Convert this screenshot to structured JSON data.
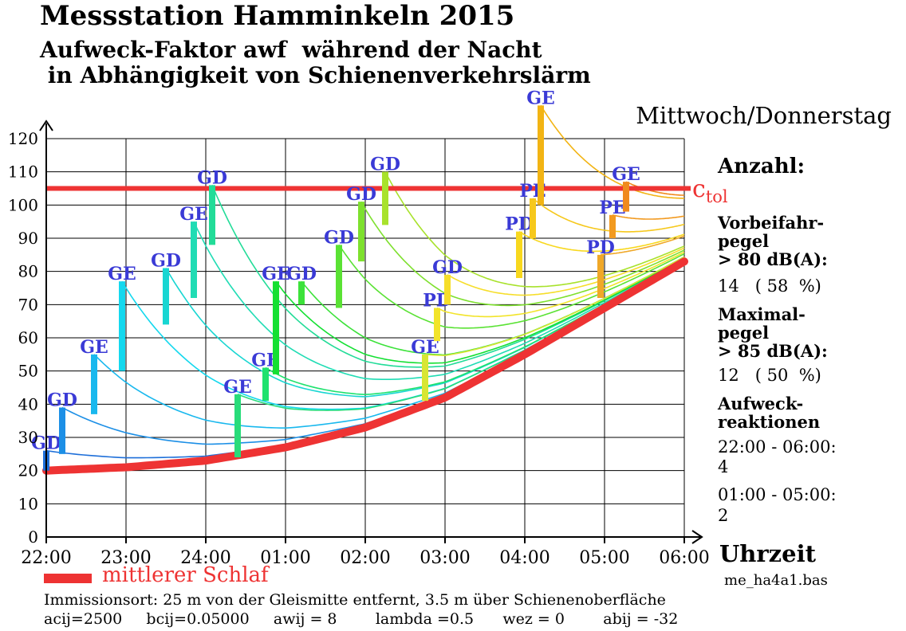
{
  "title": "Messstation Hamminkeln 2015",
  "subtitle_line1": "Aufweck-Faktor awf  während der Nacht",
  "subtitle_line2": " in Abhängigkeit von Schienenverkehrslärm",
  "day_label": "Mittwoch/Donnerstag",
  "side": {
    "count_heading": "Anzahl:",
    "passby_label": "Vorbeifahr-\npegel\n> 80 dB(A):",
    "passby_value": "14   ( 58  %)",
    "max_label": "Maximal-\npegel\n> 85 dB(A):",
    "max_value": "12   ( 50  %)",
    "reactions_label": "Aufweck-\nreaktionen",
    "period1_label": "22:00 - 06:00:",
    "period1_value": "4",
    "period2_label": "01:00 - 05:00:",
    "period2_value": "2"
  },
  "legend_label": "mittlerer Schlaf",
  "ctol_label": "c",
  "ctol_sub": "tol",
  "file_label": "me_ha4a1.bas",
  "footer_line1": "Immissionsort: 25 m von der Gleismitte entfernt, 3.5 m über Schienenoberfläche",
  "footer_line2": "acij=2500     bcij=0.05000     awij = 8        lambda =0.5      wez = 0        abij = -32",
  "x_unit": "Uhrzeit",
  "chart_data": {
    "type": "line",
    "xlabel": "Uhrzeit",
    "ylabel": "",
    "x_range_hours": [
      22,
      30
    ],
    "ylim": [
      0,
      120
    ],
    "yticks": [
      0,
      10,
      20,
      30,
      40,
      50,
      60,
      70,
      80,
      90,
      100,
      110,
      120
    ],
    "xtick_labels": [
      "22:00",
      "23:00",
      "24:00",
      "01:00",
      "02:00",
      "03:00",
      "04:00",
      "05:00",
      "06:00"
    ],
    "grid": true,
    "tolerance_level": 105,
    "baseline_series": {
      "name": "mittlerer Schlaf",
      "color": "#ee3333",
      "x": [
        22,
        23,
        24,
        25,
        26,
        27,
        28,
        29,
        30
      ],
      "y": [
        20,
        21,
        23,
        27,
        33,
        42,
        55,
        69,
        83
      ]
    },
    "events": [
      {
        "time": "22:00",
        "t": 22.0,
        "y_from": 20,
        "y_to": 26,
        "label": "GD",
        "color": "#1e6fd9"
      },
      {
        "time": "22:12",
        "t": 22.2,
        "y_from": 25,
        "y_to": 39,
        "label": "GD",
        "color": "#1c8fe6"
      },
      {
        "time": "22:36",
        "t": 22.6,
        "y_from": 37,
        "y_to": 55,
        "label": "GE",
        "color": "#19b8ee"
      },
      {
        "time": "22:57",
        "t": 22.95,
        "y_from": 50,
        "y_to": 77,
        "label": "GE",
        "color": "#14d8ee"
      },
      {
        "time": "23:30",
        "t": 23.5,
        "y_from": 64,
        "y_to": 81,
        "label": "GD",
        "color": "#18d6d2"
      },
      {
        "time": "23:51",
        "t": 23.85,
        "y_from": 72,
        "y_to": 95,
        "label": "GE",
        "color": "#20dcb4"
      },
      {
        "time": "00:05",
        "t": 24.08,
        "y_from": 88,
        "y_to": 106,
        "label": "GD",
        "color": "#22dc98"
      },
      {
        "time": "00:24",
        "t": 24.4,
        "y_from": 24,
        "y_to": 43,
        "label": "GE",
        "color": "#28dc7a"
      },
      {
        "time": "00:45",
        "t": 24.75,
        "y_from": 41,
        "y_to": 51,
        "label": "GE",
        "color": "#1ee26e"
      },
      {
        "time": "00:53",
        "t": 24.88,
        "y_from": 49,
        "y_to": 77,
        "label": "GE",
        "color": "#14e032"
      },
      {
        "time": "01:12",
        "t": 25.2,
        "y_from": 70,
        "y_to": 77,
        "label": "GD",
        "color": "#3ce23a"
      },
      {
        "time": "01:40",
        "t": 25.67,
        "y_from": 69,
        "y_to": 88,
        "label": "GD",
        "color": "#5ae234"
      },
      {
        "time": "01:57",
        "t": 25.95,
        "y_from": 83,
        "y_to": 101,
        "label": "GD",
        "color": "#7ee02e"
      },
      {
        "time": "02:15",
        "t": 26.25,
        "y_from": 94,
        "y_to": 110,
        "label": "GD",
        "color": "#a8e22c"
      },
      {
        "time": "02:45",
        "t": 26.75,
        "y_from": 41,
        "y_to": 55,
        "label": "GE",
        "color": "#d8e634"
      },
      {
        "time": "02:54",
        "t": 26.9,
        "y_from": 59,
        "y_to": 69,
        "label": "PD",
        "color": "#f2e42a"
      },
      {
        "time": "03:02",
        "t": 27.03,
        "y_from": 70,
        "y_to": 79,
        "label": "GD",
        "color": "#f6de2a"
      },
      {
        "time": "03:56",
        "t": 27.93,
        "y_from": 78,
        "y_to": 92,
        "label": "PD",
        "color": "#f8d81e"
      },
      {
        "time": "04:06",
        "t": 28.1,
        "y_from": 90,
        "y_to": 102,
        "label": "PE",
        "color": "#f6c81c"
      },
      {
        "time": "04:12",
        "t": 28.2,
        "y_from": 100,
        "y_to": 130,
        "label": "GE",
        "color": "#f2b414"
      },
      {
        "time": "04:57",
        "t": 28.95,
        "y_from": 72,
        "y_to": 85,
        "label": "PD",
        "color": "#f0a828"
      },
      {
        "time": "05:06",
        "t": 29.1,
        "y_from": 90,
        "y_to": 97,
        "label": "PE",
        "color": "#f29a20"
      },
      {
        "time": "05:15",
        "t": 29.27,
        "y_from": 98,
        "y_to": 107,
        "label": "GE",
        "color": "#f08a1e"
      }
    ]
  }
}
